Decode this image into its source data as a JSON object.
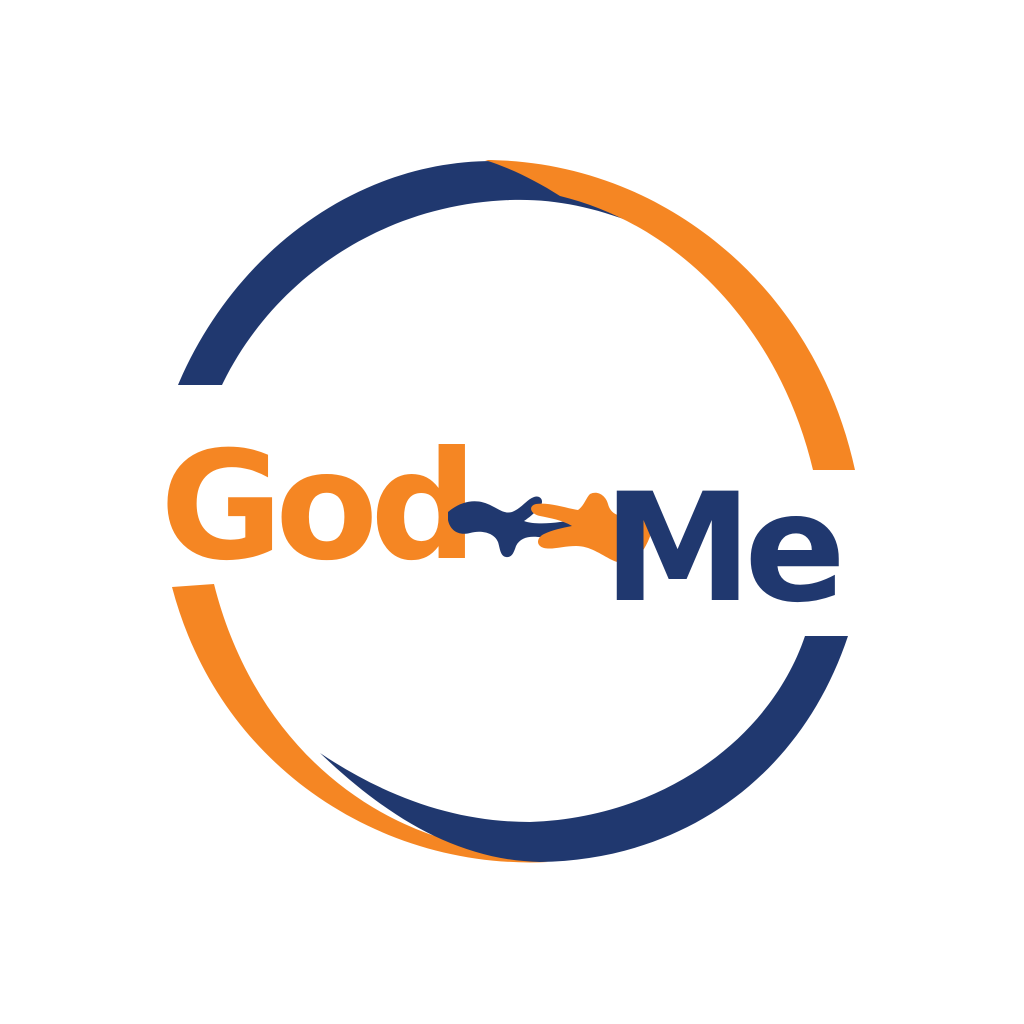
{
  "logo": {
    "word_left": "God",
    "word_right": "Me",
    "colors": {
      "background": "#ffffff",
      "orange": "#F58623",
      "navy": "#20386F"
    },
    "icons": {
      "ring": "ring-swoosh-icon",
      "hands": "reaching-hands-icon"
    }
  }
}
